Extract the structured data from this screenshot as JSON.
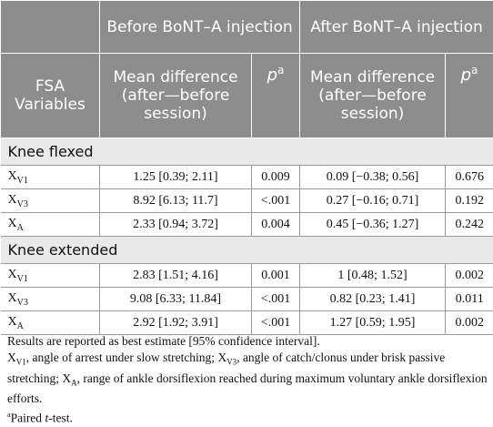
{
  "header": {
    "group_before": "Before BoNT–A injection",
    "group_after": "After BoNT–A injection",
    "col_variables": "FSA Variables",
    "col_mean_diff": "Mean difference (after—before session)",
    "col_p": "p",
    "col_p_mark": "a"
  },
  "sections": [
    {
      "label": "Knee flexed",
      "rows": [
        {
          "var": "X",
          "sub": "V1",
          "before_md": "1.25 [0.39; 2.11]",
          "before_p": "0.009",
          "after_md": "0.09 [−0.38; 0.56]",
          "after_p": "0.676"
        },
        {
          "var": "X",
          "sub": "V3",
          "before_md": "8.92 [6.13; 11.7]",
          "before_p": "<.001",
          "after_md": "0.27 [−0.16; 0.71]",
          "after_p": "0.192"
        },
        {
          "var": "X",
          "sub": "A",
          "before_md": "2.33 [0.94; 3.72]",
          "before_p": "0.004",
          "after_md": "0.45 [−0.36; 1.27]",
          "after_p": "0.242"
        }
      ]
    },
    {
      "label": "Knee extended",
      "rows": [
        {
          "var": "X",
          "sub": "V1",
          "before_md": "2.83 [1.51; 4.16]",
          "before_p": "0.001",
          "after_md": "1 [0.48; 1.52]",
          "after_p": "0.002"
        },
        {
          "var": "X",
          "sub": "V3",
          "before_md": "9.08 [6.33; 11.84]",
          "before_p": "<.001",
          "after_md": "0.82 [0.23; 1.41]",
          "after_p": "0.011"
        },
        {
          "var": "X",
          "sub": "A",
          "before_md": "2.92 [1.92; 3.91]",
          "before_p": "<.001",
          "after_md": "1.27 [0.59; 1.95]",
          "after_p": "0.002"
        }
      ]
    }
  ],
  "footnotes": {
    "line1": "Results are reported as best estimate [95% confidence interval].",
    "x": "X",
    "sub_v1": "V1",
    "sub_v3": "V3",
    "sub_a": "A",
    "def_v1": ", angle of arrest under slow stretching; ",
    "def_v3": ", angle of catch/clonus under brisk passive stretching; ",
    "def_a": ", range of ankle dorsiflexion reached during maximum voluntary ankle dorsiflexion efforts.",
    "paired_mark": "a",
    "paired_text": "Paired ",
    "paired_t": "t",
    "paired_rest": "-test."
  }
}
